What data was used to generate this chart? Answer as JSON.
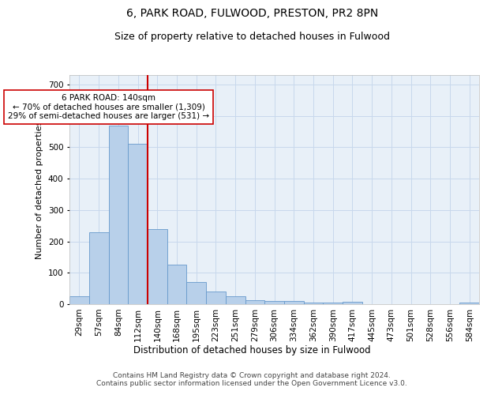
{
  "title1": "6, PARK ROAD, FULWOOD, PRESTON, PR2 8PN",
  "title2": "Size of property relative to detached houses in Fulwood",
  "xlabel": "Distribution of detached houses by size in Fulwood",
  "ylabel": "Number of detached properties",
  "categories": [
    "29sqm",
    "57sqm",
    "84sqm",
    "112sqm",
    "140sqm",
    "168sqm",
    "195sqm",
    "223sqm",
    "251sqm",
    "279sqm",
    "306sqm",
    "334sqm",
    "362sqm",
    "390sqm",
    "417sqm",
    "445sqm",
    "473sqm",
    "501sqm",
    "528sqm",
    "556sqm",
    "584sqm"
  ],
  "values": [
    25,
    230,
    570,
    510,
    240,
    125,
    70,
    40,
    25,
    13,
    10,
    10,
    5,
    5,
    7,
    0,
    0,
    0,
    0,
    0,
    5
  ],
  "bar_color": "#b8d0ea",
  "bar_edge_color": "#6699cc",
  "vline_color": "#cc0000",
  "annotation_text": "6 PARK ROAD: 140sqm\n← 70% of detached houses are smaller (1,309)\n29% of semi-detached houses are larger (531) →",
  "annotation_box_facecolor": "#ffffff",
  "annotation_box_edgecolor": "#cc0000",
  "ylim": [
    0,
    730
  ],
  "yticks": [
    0,
    100,
    200,
    300,
    400,
    500,
    600,
    700
  ],
  "grid_color": "#c8d8ec",
  "background_color": "#e8f0f8",
  "footer_text": "Contains HM Land Registry data © Crown copyright and database right 2024.\nContains public sector information licensed under the Open Government Licence v3.0.",
  "title1_fontsize": 10,
  "title2_fontsize": 9,
  "xlabel_fontsize": 8.5,
  "ylabel_fontsize": 8,
  "tick_fontsize": 7.5,
  "annot_fontsize": 7.5,
  "footer_fontsize": 6.5
}
